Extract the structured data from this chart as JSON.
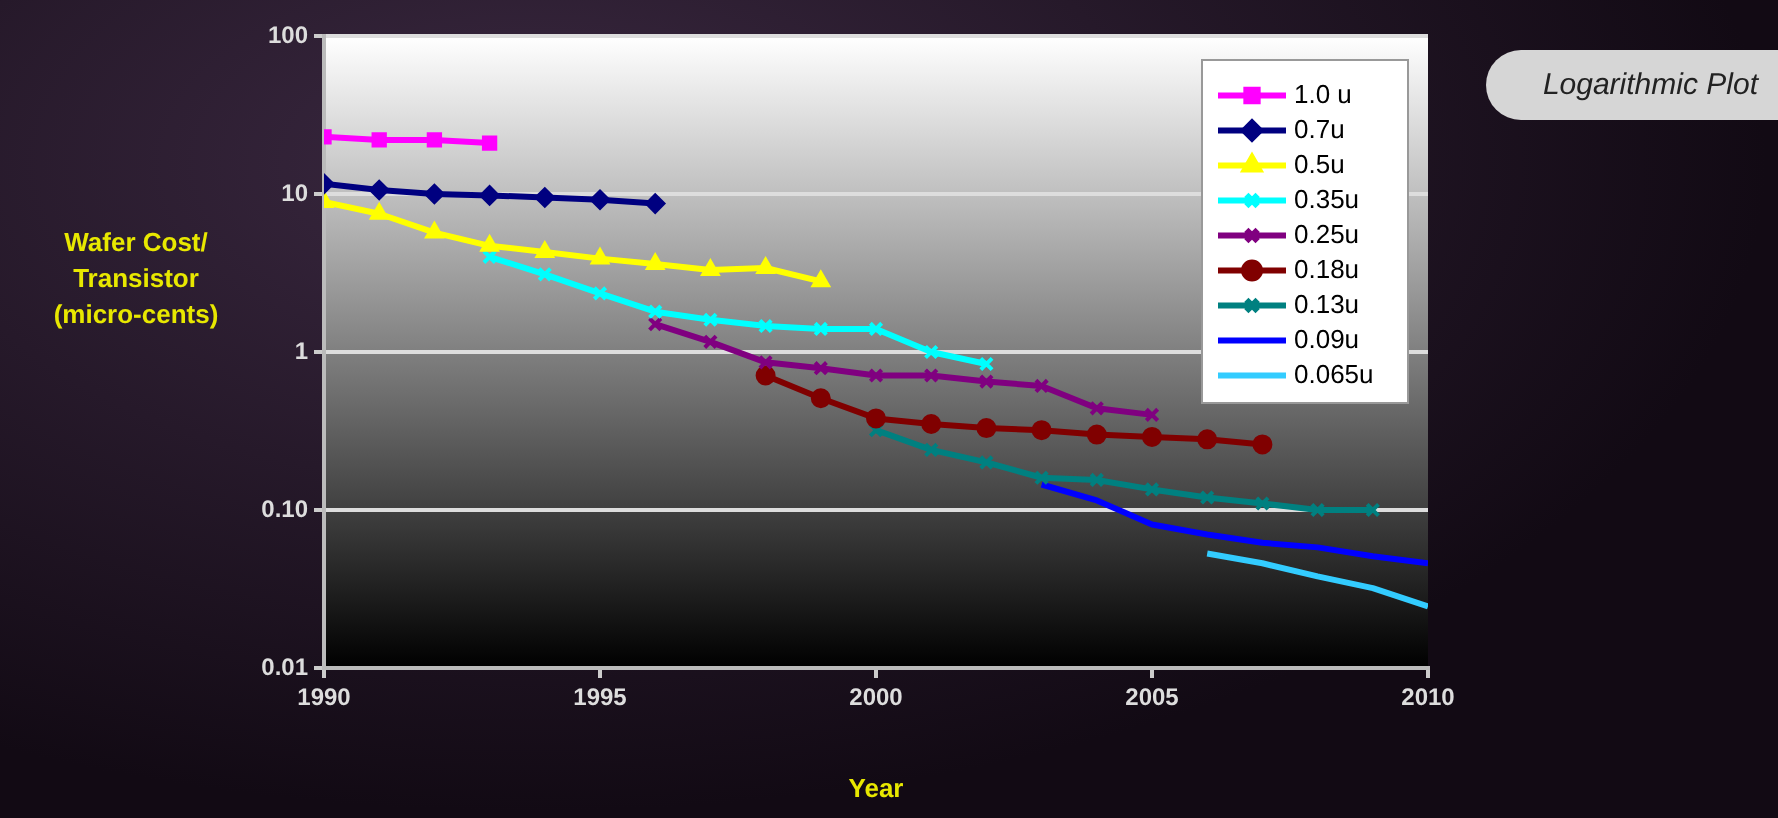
{
  "chart_data": {
    "type": "line",
    "xlabel": "Year",
    "ylabel": "Wafer Cost/ Transistor (micro-cents)",
    "annotations": [
      "Logarithmic Plot"
    ],
    "log": "y",
    "grid": "y",
    "legend": "top right",
    "line_style": "solid",
    "xlim": [
      1990,
      2010
    ],
    "xticks": [
      1990,
      1995,
      2000,
      2005,
      2010
    ],
    "ylim": [
      0.01,
      100
    ],
    "yticks": [
      {
        "value": 0.01,
        "label": "0.01"
      },
      {
        "value": 0.1,
        "label": "0.10"
      },
      1,
      10,
      100
    ],
    "series": [
      {
        "name": "1.0 u",
        "color": "#ff00ff",
        "marker": "square",
        "x": [
          1990,
          1991,
          1992,
          1993
        ],
        "values": [
          23,
          22,
          22,
          21
        ]
      },
      {
        "name": "0.7u",
        "color": "#000080",
        "marker": "diamond",
        "x": [
          1990,
          1991,
          1992,
          1993,
          1994,
          1995,
          1996
        ],
        "values": [
          11.6,
          10.6,
          10,
          9.8,
          9.5,
          9.2,
          8.7
        ]
      },
      {
        "name": "0.5u",
        "color": "#ffff00",
        "marker": "triangle",
        "x": [
          1990,
          1991,
          1992,
          1993,
          1994,
          1995,
          1996,
          1997,
          1998,
          1999
        ],
        "values": [
          8.9,
          7.5,
          5.7,
          4.7,
          4.3,
          3.9,
          3.6,
          3.3,
          3.4,
          2.8
        ]
      },
      {
        "name": "0.35u",
        "color": "#00ffff",
        "marker": "cross",
        "x": [
          1993,
          1994,
          1995,
          1996,
          1997,
          1998,
          1999,
          2000,
          2001,
          2002
        ],
        "values": [
          4,
          3.1,
          2.35,
          1.8,
          1.6,
          1.46,
          1.4,
          1.4,
          1.0,
          0.84
        ]
      },
      {
        "name": "0.25u",
        "color": "#800080",
        "marker": "cross",
        "x": [
          1996,
          1997,
          1998,
          1999,
          2000,
          2001,
          2002,
          2003,
          2004,
          2005
        ],
        "values": [
          1.5,
          1.16,
          0.86,
          0.79,
          0.71,
          0.71,
          0.65,
          0.61,
          0.44,
          0.4
        ]
      },
      {
        "name": "0.18u",
        "color": "#800000",
        "marker": "circle",
        "x": [
          1998,
          1999,
          2000,
          2001,
          2002,
          2003,
          2004,
          2005,
          2006,
          2007
        ],
        "values": [
          0.71,
          0.51,
          0.38,
          0.35,
          0.33,
          0.32,
          0.3,
          0.29,
          0.28,
          0.26
        ]
      },
      {
        "name": "0.13u",
        "color": "#008080",
        "marker": "cross",
        "x": [
          2000,
          2001,
          2002,
          2003,
          2004,
          2005,
          2006,
          2007,
          2008,
          2009
        ],
        "values": [
          0.32,
          0.24,
          0.2,
          0.16,
          0.155,
          0.135,
          0.12,
          0.11,
          0.1,
          0.1
        ]
      },
      {
        "name": "0.09u",
        "color": "#0000ff",
        "marker": "none",
        "x": [
          2003,
          2004,
          2005,
          2006,
          2007,
          2008,
          2009,
          2010
        ],
        "values": [
          0.145,
          0.115,
          0.081,
          0.07,
          0.062,
          0.058,
          0.051,
          0.046
        ]
      },
      {
        "name": "0.065u",
        "color": "#33ccff",
        "marker": "none",
        "x": [
          2006,
          2007,
          2008,
          2009,
          2010
        ],
        "values": [
          0.053,
          0.046,
          0.038,
          0.032,
          0.0245
        ]
      }
    ]
  }
}
